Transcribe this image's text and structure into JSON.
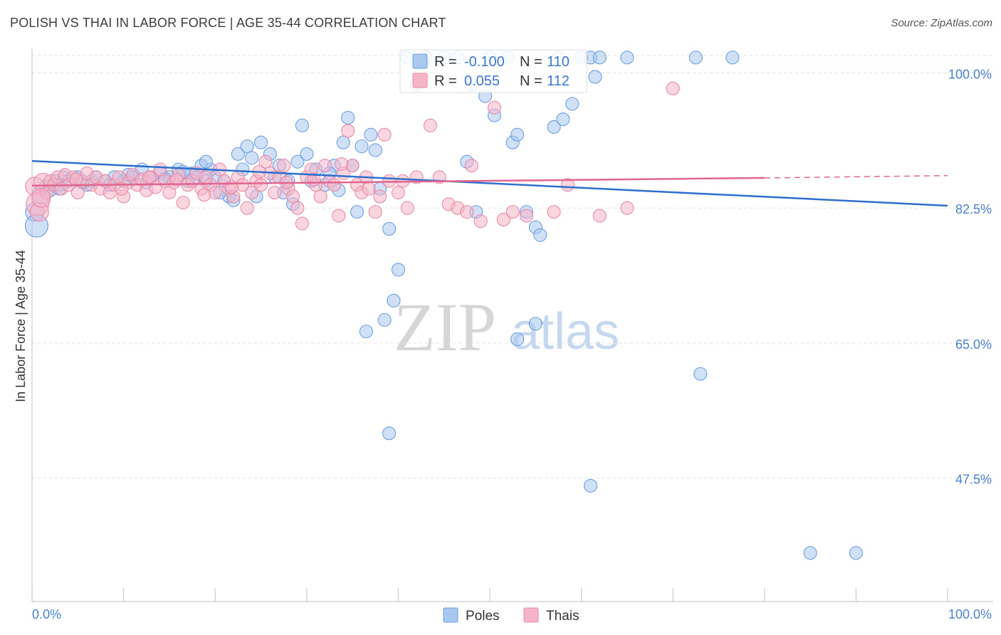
{
  "title": "POLISH VS THAI IN LABOR FORCE | AGE 35-44 CORRELATION CHART",
  "source": "Source: ZipAtlas.com",
  "colors": {
    "poles_fill": "#a9c8f0",
    "poles_stroke": "#6c9fe0",
    "poles_line": "#2f6fcc",
    "thais_fill": "#f5b5c8",
    "thais_stroke": "#e98aa6",
    "thais_line": "#e0668f",
    "axis_text": "#4a7fd0",
    "grid": "#e3e3e3"
  },
  "legend": {
    "poles": {
      "r_label": "R =",
      "r_value": "-0.100",
      "n_label": "N =",
      "n_value": "110"
    },
    "thais": {
      "r_label": "R =",
      "r_value": "0.055",
      "n_label": "N =",
      "n_value": "112"
    }
  },
  "bottom_legend": {
    "poles": "Poles",
    "thais": "Thais"
  },
  "watermark": {
    "zip": "ZIP",
    "atlas": "atlas"
  },
  "chart_data": {
    "type": "scatter",
    "title": "POLISH VS THAI IN LABOR FORCE | AGE 35-44 CORRELATION CHART",
    "xlabel": "",
    "ylabel": "In Labor Force | Age 35-44",
    "xlim": [
      0,
      100
    ],
    "ylim": [
      31.5,
      103
    ],
    "x_tick_labels": [
      "0.0%",
      "100.0%"
    ],
    "y_ticks": [
      47.5,
      65.0,
      82.5,
      100.0
    ],
    "y_tick_labels": [
      "47.5%",
      "65.0%",
      "82.5%",
      "100.0%"
    ],
    "grid": "horizontal dashed",
    "legend_position": "top-center",
    "series": [
      {
        "name": "Poles",
        "r": -0.1,
        "n": 110,
        "trend": {
          "x": [
            0,
            100
          ],
          "y": [
            88.6,
            82.8
          ]
        },
        "points": [
          [
            0.3,
            82.0
          ],
          [
            0.5,
            80.2
          ],
          [
            1.0,
            84.2
          ],
          [
            1.5,
            85.3
          ],
          [
            2.0,
            84.8
          ],
          [
            2.5,
            86.0
          ],
          [
            3.0,
            85.5
          ],
          [
            3.5,
            86.5
          ],
          [
            4.0,
            86.0
          ],
          [
            5.0,
            86.5
          ],
          [
            6.0,
            85.5
          ],
          [
            6.5,
            86.0
          ],
          [
            7.0,
            86.5
          ],
          [
            8.0,
            86.0
          ],
          [
            9.0,
            86.5
          ],
          [
            10.0,
            86.0
          ],
          [
            11.0,
            86.5
          ],
          [
            12.0,
            87.5
          ],
          [
            13.0,
            86.5
          ],
          [
            14.0,
            87.0
          ],
          [
            15.0,
            86.5
          ],
          [
            16.0,
            87.5
          ],
          [
            17.0,
            86.0
          ],
          [
            17.5,
            87.0
          ],
          [
            18.0,
            86.5
          ],
          [
            18.5,
            88.0
          ],
          [
            19.0,
            86.0
          ],
          [
            19.5,
            87.5
          ],
          [
            20.0,
            86.5
          ],
          [
            21.0,
            86.0
          ],
          [
            21.5,
            84.0
          ],
          [
            22.0,
            83.5
          ],
          [
            22.5,
            89.5
          ],
          [
            23.0,
            87.5
          ],
          [
            23.5,
            90.5
          ],
          [
            24.0,
            89.0
          ],
          [
            25.0,
            91.0
          ],
          [
            26.0,
            89.5
          ],
          [
            27.0,
            88.0
          ],
          [
            28.0,
            86.0
          ],
          [
            28.5,
            83.0
          ],
          [
            29.0,
            88.5
          ],
          [
            29.5,
            93.2
          ],
          [
            30.0,
            89.5
          ],
          [
            31.0,
            87.5
          ],
          [
            32.0,
            85.5
          ],
          [
            33.0,
            88.0
          ],
          [
            34.0,
            91.0
          ],
          [
            34.5,
            94.2
          ],
          [
            35.0,
            88.0
          ],
          [
            36.0,
            90.5
          ],
          [
            37.0,
            92.0
          ],
          [
            38.0,
            85.0
          ],
          [
            39.0,
            79.8
          ],
          [
            39.5,
            70.5
          ],
          [
            38.5,
            68.0
          ],
          [
            40.0,
            74.5
          ],
          [
            41.0,
            102.0
          ],
          [
            42.0,
            98.5
          ],
          [
            43.0,
            102.0
          ],
          [
            45.0,
            102.0
          ],
          [
            46.5,
            102.0
          ],
          [
            48.0,
            98.5
          ],
          [
            49.5,
            97.0
          ],
          [
            50.0,
            102.0
          ],
          [
            50.5,
            94.5
          ],
          [
            52.0,
            102.0
          ],
          [
            52.5,
            91.0
          ],
          [
            53.0,
            92.0
          ],
          [
            54.0,
            82.0
          ],
          [
            55.0,
            80.0
          ],
          [
            55.5,
            79.0
          ],
          [
            57.0,
            93.0
          ],
          [
            57.5,
            102.0
          ],
          [
            58.0,
            94.0
          ],
          [
            59.0,
            96.0
          ],
          [
            60.0,
            102.0
          ],
          [
            61.0,
            102.0
          ],
          [
            61.5,
            99.5
          ],
          [
            62.0,
            102.0
          ],
          [
            48.5,
            82.0
          ],
          [
            47.5,
            88.5
          ],
          [
            36.5,
            66.5
          ],
          [
            39.0,
            53.3
          ],
          [
            53.0,
            65.5
          ],
          [
            55.0,
            67.5
          ],
          [
            65.0,
            102.0
          ],
          [
            72.5,
            102.0
          ],
          [
            76.5,
            102.0
          ],
          [
            61.0,
            46.5
          ],
          [
            73.0,
            61.0
          ],
          [
            85.0,
            37.8
          ],
          [
            90.0,
            37.8
          ],
          [
            3.0,
            85.0
          ],
          [
            5.5,
            85.8
          ],
          [
            8.5,
            85.5
          ],
          [
            10.5,
            86.8
          ],
          [
            12.5,
            85.8
          ],
          [
            14.5,
            86.3
          ],
          [
            16.5,
            87.2
          ],
          [
            19.0,
            88.5
          ],
          [
            20.5,
            84.5
          ],
          [
            24.5,
            84.0
          ],
          [
            26.5,
            86.5
          ],
          [
            27.5,
            84.5
          ],
          [
            30.5,
            86.0
          ],
          [
            32.5,
            87.0
          ],
          [
            33.5,
            84.8
          ],
          [
            35.5,
            82.0
          ],
          [
            37.5,
            90.0
          ]
        ]
      },
      {
        "name": "Thais",
        "r": 0.055,
        "n": 112,
        "trend": {
          "x": [
            0,
            80
          ],
          "y": [
            85.4,
            86.4
          ]
        },
        "trend_dashed_to": [
          100,
          86.7
        ],
        "points": [
          [
            0.3,
            85.3
          ],
          [
            0.6,
            83.0
          ],
          [
            0.8,
            82.0
          ],
          [
            1.2,
            85.8
          ],
          [
            1.6,
            84.5
          ],
          [
            2.0,
            86.0
          ],
          [
            2.4,
            85.5
          ],
          [
            2.8,
            86.5
          ],
          [
            3.2,
            85.0
          ],
          [
            3.6,
            86.8
          ],
          [
            4.0,
            85.5
          ],
          [
            4.5,
            86.5
          ],
          [
            5.0,
            84.5
          ],
          [
            5.5,
            86.0
          ],
          [
            6.0,
            87.0
          ],
          [
            6.5,
            85.5
          ],
          [
            7.0,
            86.5
          ],
          [
            7.5,
            85.0
          ],
          [
            8.0,
            86.0
          ],
          [
            8.5,
            84.5
          ],
          [
            9.0,
            85.5
          ],
          [
            9.5,
            86.5
          ],
          [
            10.0,
            84.0
          ],
          [
            10.5,
            85.8
          ],
          [
            11.0,
            86.8
          ],
          [
            11.5,
            85.5
          ],
          [
            12.0,
            86.2
          ],
          [
            12.5,
            84.8
          ],
          [
            13.0,
            86.5
          ],
          [
            13.5,
            85.2
          ],
          [
            14.0,
            87.5
          ],
          [
            14.5,
            86.0
          ],
          [
            15.0,
            84.5
          ],
          [
            15.5,
            85.8
          ],
          [
            16.0,
            86.8
          ],
          [
            16.5,
            83.2
          ],
          [
            17.0,
            85.5
          ],
          [
            17.5,
            86.0
          ],
          [
            18.0,
            87.0
          ],
          [
            18.5,
            85.0
          ],
          [
            19.0,
            86.5
          ],
          [
            19.5,
            85.5
          ],
          [
            20.0,
            84.5
          ],
          [
            20.5,
            87.5
          ],
          [
            21.0,
            86.0
          ],
          [
            21.5,
            85.0
          ],
          [
            22.0,
            84.0
          ],
          [
            22.5,
            86.5
          ],
          [
            23.0,
            85.5
          ],
          [
            23.5,
            82.5
          ],
          [
            24.0,
            84.5
          ],
          [
            24.5,
            86.0
          ],
          [
            25.0,
            85.5
          ],
          [
            25.5,
            88.5
          ],
          [
            26.0,
            87.0
          ],
          [
            26.5,
            84.5
          ],
          [
            27.0,
            86.5
          ],
          [
            27.5,
            88.0
          ],
          [
            28.0,
            85.0
          ],
          [
            28.5,
            84.0
          ],
          [
            29.0,
            82.5
          ],
          [
            29.5,
            80.5
          ],
          [
            30.0,
            86.5
          ],
          [
            30.5,
            87.5
          ],
          [
            31.0,
            85.5
          ],
          [
            31.5,
            84.0
          ],
          [
            32.0,
            88.0
          ],
          [
            32.5,
            86.0
          ],
          [
            33.0,
            85.5
          ],
          [
            33.5,
            81.5
          ],
          [
            34.0,
            87.0
          ],
          [
            34.5,
            92.5
          ],
          [
            35.0,
            88.0
          ],
          [
            35.5,
            85.5
          ],
          [
            36.0,
            84.5
          ],
          [
            36.5,
            86.5
          ],
          [
            37.5,
            82.0
          ],
          [
            38.0,
            84.0
          ],
          [
            38.5,
            92.0
          ],
          [
            39.0,
            86.0
          ],
          [
            40.0,
            84.5
          ],
          [
            40.5,
            86.0
          ],
          [
            41.0,
            82.5
          ],
          [
            42.0,
            86.5
          ],
          [
            43.5,
            93.2
          ],
          [
            44.5,
            86.5
          ],
          [
            45.5,
            83.0
          ],
          [
            46.5,
            82.5
          ],
          [
            47.5,
            82.0
          ],
          [
            48.0,
            88.0
          ],
          [
            49.0,
            80.8
          ],
          [
            50.5,
            95.5
          ],
          [
            51.5,
            81.0
          ],
          [
            52.5,
            82.0
          ],
          [
            54.0,
            81.5
          ],
          [
            57.0,
            82.0
          ],
          [
            58.5,
            85.5
          ],
          [
            62.0,
            81.5
          ],
          [
            65.0,
            82.5
          ],
          [
            70.0,
            98.0
          ],
          [
            1.0,
            83.8
          ],
          [
            4.8,
            86.2
          ],
          [
            9.8,
            85.0
          ],
          [
            12.8,
            86.5
          ],
          [
            15.8,
            86.2
          ],
          [
            18.8,
            84.2
          ],
          [
            21.8,
            85.2
          ],
          [
            24.8,
            87.2
          ],
          [
            27.8,
            85.8
          ],
          [
            30.8,
            86.2
          ],
          [
            33.8,
            88.2
          ],
          [
            36.8,
            85.0
          ]
        ]
      }
    ]
  }
}
